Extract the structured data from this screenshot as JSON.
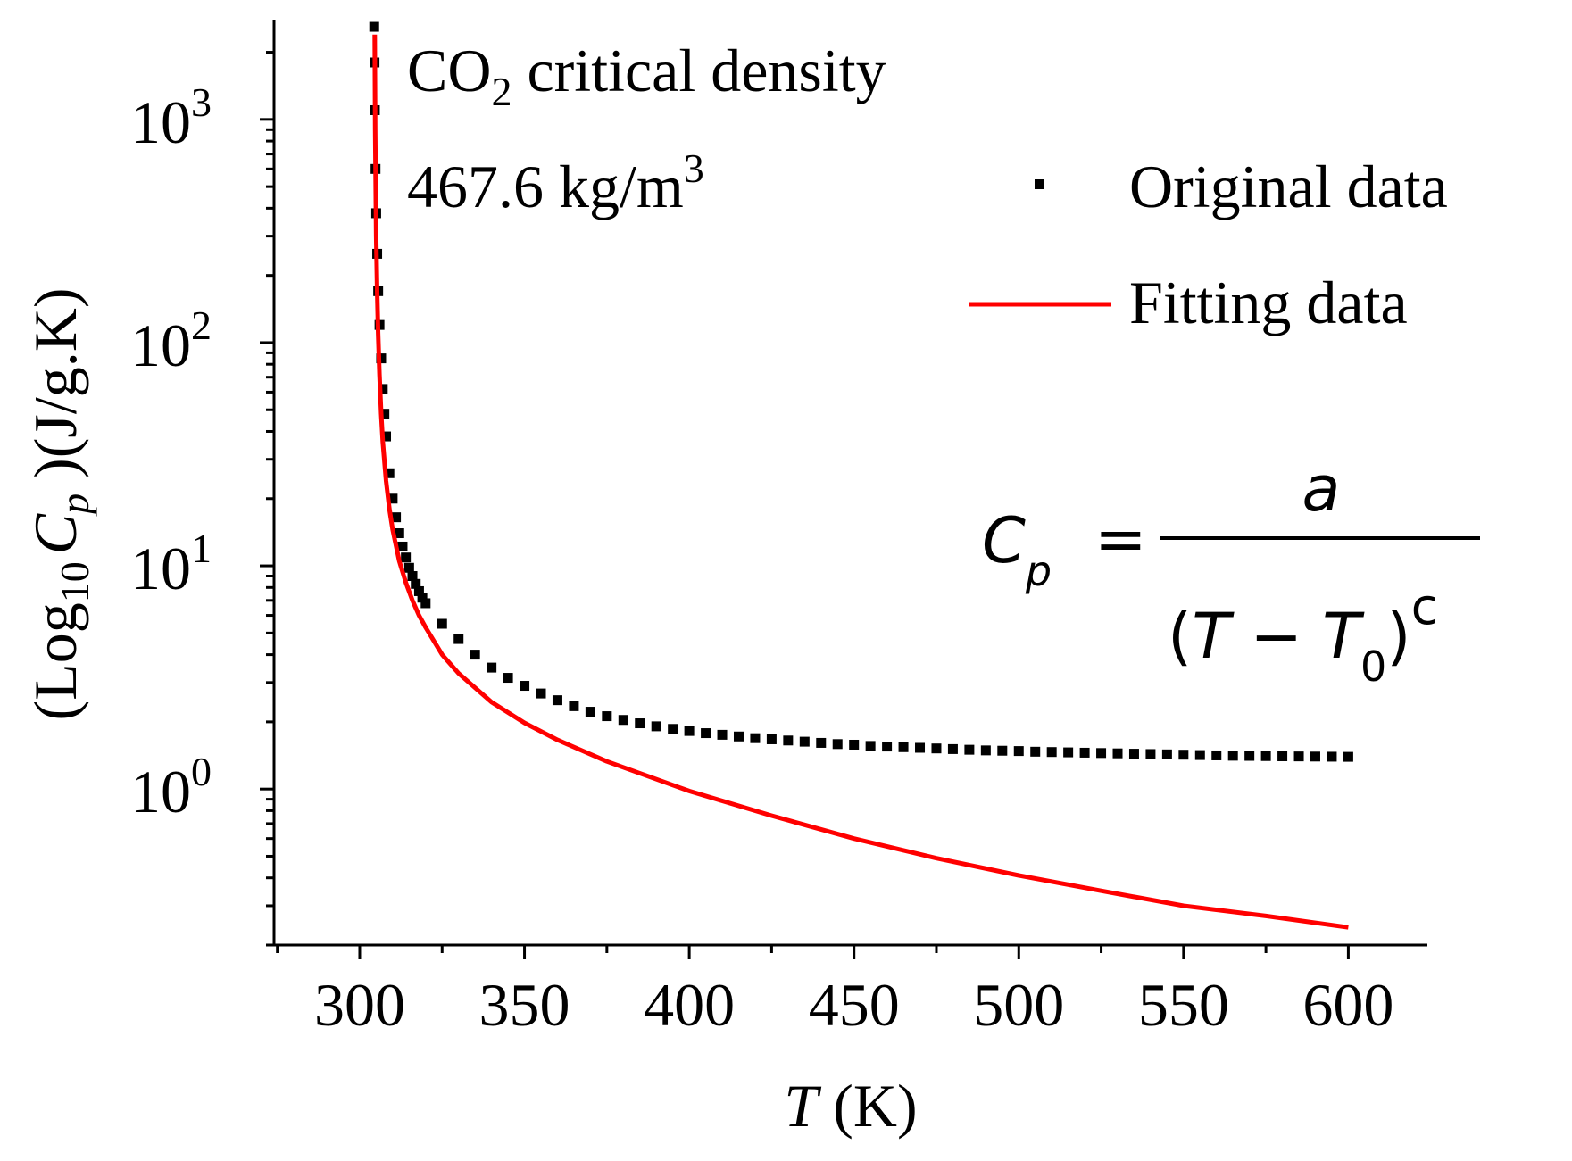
{
  "chart_data": {
    "type": "scatter",
    "title": "",
    "xlabel_var": "T",
    "xlabel_unit": " (K)",
    "ylabel": {
      "open": "(Log",
      "sub": "10",
      "var": "C",
      "var_sub": "p",
      "unit": " )(J/g.K)"
    },
    "x_ticks": [
      300,
      350,
      400,
      450,
      500,
      550,
      600
    ],
    "y_ticks": [
      {
        "base": "10",
        "exp": "0",
        "value": 1
      },
      {
        "base": "10",
        "exp": "1",
        "value": 10
      },
      {
        "base": "10",
        "exp": "2",
        "value": 100
      },
      {
        "base": "10",
        "exp": "3",
        "value": 1000
      }
    ],
    "xlim": [
      274,
      624
    ],
    "ylim": [
      0.2,
      2800
    ],
    "yscale": "log",
    "legend_position": "top-right",
    "series": [
      {
        "name": "Original data",
        "kind": "markers",
        "color": "#000000",
        "x": [
          304.4,
          304.5,
          304.6,
          304.8,
          305,
          305.3,
          305.6,
          306,
          306.5,
          307,
          307.5,
          308,
          309,
          310,
          311,
          312,
          313,
          314,
          315,
          316,
          317,
          318,
          319,
          320,
          325,
          330,
          335,
          340,
          345,
          350,
          355,
          360,
          365,
          370,
          375,
          380,
          385,
          390,
          395,
          400,
          405,
          410,
          415,
          420,
          425,
          430,
          435,
          440,
          445,
          450,
          455,
          460,
          465,
          470,
          475,
          480,
          485,
          490,
          495,
          500,
          505,
          510,
          515,
          520,
          525,
          530,
          535,
          540,
          545,
          550,
          555,
          560,
          565,
          570,
          575,
          580,
          585,
          590,
          595,
          600
        ],
        "y": [
          2600,
          1800,
          1100,
          600,
          380,
          250,
          170,
          120,
          85,
          62,
          48,
          38,
          26,
          20,
          16.5,
          14,
          12.2,
          10.9,
          9.8,
          9.0,
          8.3,
          7.7,
          7.2,
          6.8,
          5.5,
          4.7,
          4.0,
          3.5,
          3.15,
          2.9,
          2.68,
          2.5,
          2.35,
          2.22,
          2.12,
          2.04,
          1.97,
          1.91,
          1.86,
          1.82,
          1.78,
          1.75,
          1.72,
          1.69,
          1.67,
          1.65,
          1.63,
          1.61,
          1.59,
          1.58,
          1.56,
          1.55,
          1.54,
          1.53,
          1.52,
          1.51,
          1.5,
          1.49,
          1.485,
          1.48,
          1.47,
          1.465,
          1.46,
          1.455,
          1.45,
          1.445,
          1.44,
          1.435,
          1.43,
          1.425,
          1.42,
          1.415,
          1.41,
          1.408,
          1.405,
          1.402,
          1.4,
          1.398,
          1.396,
          1.394
        ]
      },
      {
        "name": "Fitting data",
        "kind": "line",
        "color": "#ff0000",
        "x": [
          304.55,
          304.6,
          304.7,
          304.8,
          305,
          305.3,
          305.6,
          306,
          306.5,
          307,
          308,
          309,
          310,
          312,
          314,
          316,
          318,
          320,
          325,
          330,
          340,
          350,
          360,
          375,
          400,
          425,
          450,
          475,
          500,
          525,
          550,
          575,
          600
        ],
        "y": [
          2400,
          1600,
          900,
          600,
          300,
          170,
          110,
          72,
          48,
          36,
          24,
          18,
          14.5,
          10.5,
          8.4,
          7.0,
          6.0,
          5.3,
          4.0,
          3.3,
          2.45,
          1.98,
          1.66,
          1.33,
          0.98,
          0.76,
          0.6,
          0.49,
          0.41,
          0.35,
          0.3,
          0.27,
          0.24
        ]
      }
    ],
    "annotations": {
      "title_prefix": "CO",
      "title_sub": "2",
      "title_suffix": " critical density",
      "density_value": "467.6  kg/m",
      "density_exp": "3",
      "formula": {
        "lhs": "C",
        "lhs_sub": "p",
        "equals": "=",
        "numerator": "a",
        "paren_open": "(",
        "den_var1": "T",
        "minus": " − ",
        "den_var2": "T",
        "den_sub": "0",
        "paren_close": ")",
        "exponent": "c"
      }
    }
  }
}
